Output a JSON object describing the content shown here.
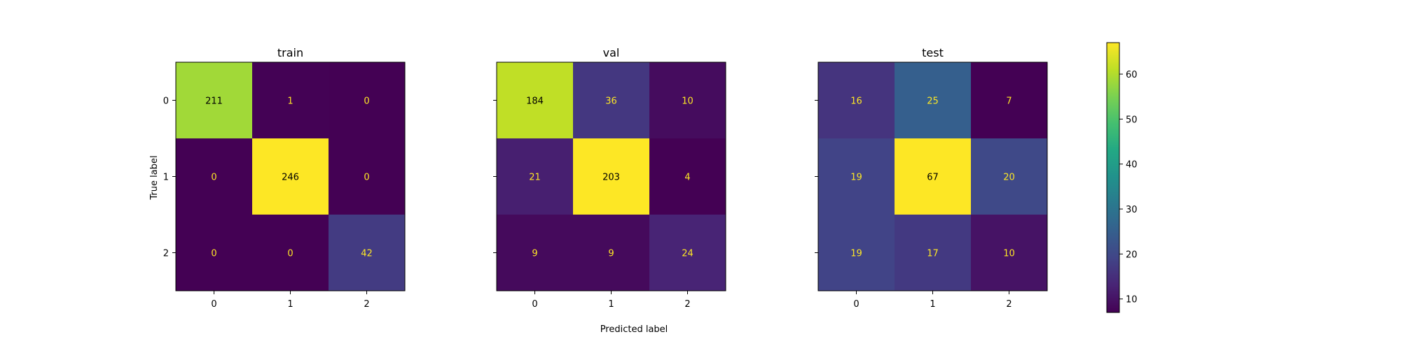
{
  "chart_data": {
    "type": "heatmap",
    "colormap": "viridis",
    "xlabel": "Predicted label",
    "ylabel": "True label",
    "categories": [
      "0",
      "1",
      "2"
    ],
    "panels": [
      {
        "title": "train",
        "matrix": [
          [
            211,
            1,
            0
          ],
          [
            0,
            246,
            0
          ],
          [
            0,
            0,
            42
          ]
        ]
      },
      {
        "title": "val",
        "matrix": [
          [
            184,
            36,
            10
          ],
          [
            21,
            203,
            4
          ],
          [
            9,
            9,
            24
          ]
        ]
      },
      {
        "title": "test",
        "matrix": [
          [
            16,
            25,
            7
          ],
          [
            19,
            67,
            20
          ],
          [
            19,
            17,
            10
          ]
        ]
      }
    ],
    "colorbar": {
      "range": [
        7,
        67
      ],
      "ticks": [
        10,
        20,
        30,
        40,
        50,
        60
      ]
    },
    "colors": {
      "low_text": "#fde725",
      "high_text": "#000000"
    }
  }
}
